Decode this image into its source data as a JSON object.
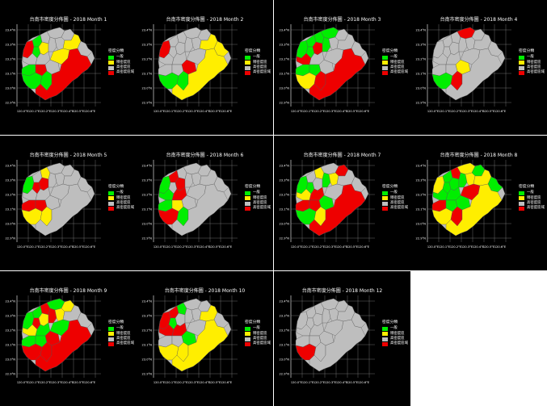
{
  "legend": {
    "title": "密度分類",
    "items": [
      {
        "label": "一般",
        "color": "#00ee00"
      },
      {
        "label": "稍密度區",
        "color": "#ffee00"
      },
      {
        "label": "高密度區",
        "color": "#bebebe"
      },
      {
        "label": "高密度區域",
        "color": "#ee0000"
      }
    ]
  },
  "axes": {
    "x_ticks": [
      "120.0°E",
      "120.1°E",
      "120.2°E",
      "120.3°E",
      "120.4°E",
      "120.5°E",
      "120.6°E"
    ],
    "y_ticks": [
      "23.4°N",
      "23.3°N",
      "23.2°N",
      "23.1°N",
      "23.0°N",
      "22.9°N"
    ]
  },
  "panels": [
    {
      "title": "台南市密度分佈圖 - 2018 Month 1",
      "legend": true,
      "regions": [
        "0:r",
        "1:g",
        "5:g",
        "6:y",
        "9:y",
        "13:g",
        "14:r",
        "15:g",
        "16:g",
        "18:y",
        "19:r"
      ]
    },
    {
      "title": "台南市密度分佈圖 - 2018 Month 2",
      "legend": true,
      "regions": [
        "0:r",
        "9:y",
        "10:y",
        "15:g",
        "16:g",
        "17:r",
        "19:y"
      ]
    },
    {
      "title": "台南市密度分佈圖 - 2018 Month 3",
      "legend": true,
      "regions": [
        "0:g",
        "1:g",
        "2:g",
        "3:g",
        "5:g",
        "6:r",
        "7:g",
        "11:r",
        "13:g",
        "14:g",
        "15:y",
        "16:r",
        "19:r"
      ]
    },
    {
      "title": "台南市密度分佈圖 - 2018 Month 4",
      "legend": true,
      "regions": [
        "3:r",
        "15:g",
        "16:r",
        "17:y"
      ]
    },
    {
      "title": "台南市密度分佈圖 - 2018 Month 5",
      "legend": true,
      "regions": [
        "0:g",
        "2:y",
        "5:r",
        "6:r",
        "13:r",
        "14:r",
        "15:y",
        "16:y"
      ]
    },
    {
      "title": "台南市密度分佈圖 - 2018 Month 6",
      "legend": true,
      "regions": [
        "0:g",
        "1:r",
        "6:r",
        "11:g",
        "12:r",
        "13:g",
        "14:y",
        "15:r",
        "16:g"
      ]
    },
    {
      "title": "台南市密度分佈圖 - 2018 Month 7",
      "legend": true,
      "regions": [
        "0:g",
        "2:y",
        "4:r",
        "5:g",
        "7:g",
        "8:y",
        "11:y",
        "12:r",
        "13:r",
        "14:r",
        "15:g",
        "16:y",
        "17:g",
        "19:r"
      ]
    },
    {
      "title": "台南市密度分佈圖 - 2018 Month 8",
      "legend": true,
      "regions": [
        "0:y",
        "1:g",
        "2:r",
        "3:y",
        "4:g",
        "5:g",
        "6:g",
        "7:g",
        "8:y",
        "9:y",
        "10:g",
        "11:g",
        "12:g",
        "13:r",
        "14:g",
        "15:y",
        "16:r",
        "17:g",
        "18:r",
        "19:y"
      ]
    },
    {
      "title": "台南市密度分佈圖 - 2018 Month 9",
      "legend": true,
      "regions": [
        "0:g",
        "1:g",
        "2:r",
        "3:g",
        "4:y",
        "5:r",
        "6:y",
        "7:r",
        "8:y",
        "11:y",
        "12:g",
        "13:g",
        "14:g",
        "15:r",
        "16:r",
        "17:r",
        "18:g",
        "19:r"
      ]
    },
    {
      "title": "台南市密度分佈圖 - 2018 Month 10",
      "legend": true,
      "regions": [
        "0:r",
        "1:r",
        "2:g",
        "5:g",
        "9:y",
        "11:r",
        "12:r",
        "15:y",
        "16:y",
        "17:g",
        "19:y"
      ]
    },
    {
      "title": "台南市密度分佈圖 - 2018 Month 12",
      "legend": true,
      "regions": [
        "15:r"
      ]
    }
  ]
}
